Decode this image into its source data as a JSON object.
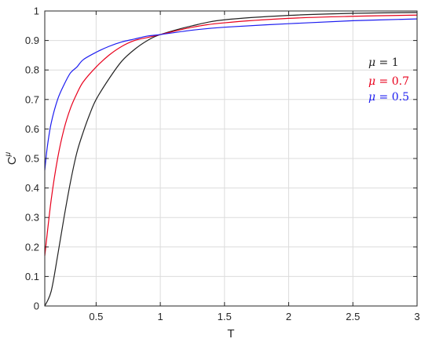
{
  "chart_data": {
    "type": "line",
    "title": "",
    "xlabel": "T",
    "ylabel": "C",
    "ylabel_superscript": "μ",
    "xlim": [
      0.1,
      3
    ],
    "ylim": [
      0,
      1
    ],
    "grid": true,
    "legend_placement": "right",
    "xticks": [
      0.5,
      1,
      1.5,
      2,
      2.5,
      3
    ],
    "xtick_labels": [
      "0.5",
      "1",
      "1.5",
      "2",
      "2.5",
      "3"
    ],
    "yticks": [
      0,
      0.1,
      0.2,
      0.3,
      0.4,
      0.5,
      0.6,
      0.7,
      0.8,
      0.9,
      1
    ],
    "ytick_labels": [
      "0",
      "0.1",
      "0.2",
      "0.3",
      "0.4",
      "0.5",
      "0.6",
      "0.7",
      "0.8",
      "0.9",
      "1"
    ],
    "series": [
      {
        "name": "μ = 1",
        "color": "#222222",
        "x": [
          0.1,
          0.15,
          0.2,
          0.25,
          0.3,
          0.35,
          0.4,
          0.45,
          0.5,
          0.6,
          0.7,
          0.8,
          0.9,
          1.0,
          1.25,
          1.5,
          2.0,
          2.5,
          3.0
        ],
        "y": [
          0.0,
          0.05,
          0.17,
          0.3,
          0.42,
          0.52,
          0.59,
          0.65,
          0.7,
          0.77,
          0.83,
          0.87,
          0.9,
          0.92,
          0.95,
          0.97,
          0.985,
          0.992,
          0.995
        ]
      },
      {
        "name": "μ = 0.7",
        "color": "#e8001c",
        "x": [
          0.1,
          0.15,
          0.2,
          0.25,
          0.3,
          0.35,
          0.4,
          0.5,
          0.6,
          0.7,
          0.8,
          0.9,
          1.0,
          1.25,
          1.5,
          2.0,
          2.5,
          3.0
        ],
        "y": [
          0.17,
          0.36,
          0.5,
          0.6,
          0.67,
          0.72,
          0.76,
          0.81,
          0.85,
          0.88,
          0.9,
          0.91,
          0.92,
          0.945,
          0.96,
          0.975,
          0.982,
          0.986
        ]
      },
      {
        "name": "μ = 0.5",
        "color": "#1d1df0",
        "x": [
          0.1,
          0.12,
          0.15,
          0.2,
          0.25,
          0.3,
          0.35,
          0.4,
          0.5,
          0.6,
          0.7,
          0.8,
          0.9,
          1.0,
          1.25,
          1.5,
          2.0,
          2.5,
          3.0
        ],
        "y": [
          0.46,
          0.54,
          0.62,
          0.7,
          0.75,
          0.79,
          0.81,
          0.835,
          0.86,
          0.88,
          0.895,
          0.905,
          0.915,
          0.92,
          0.935,
          0.945,
          0.957,
          0.967,
          0.973
        ]
      }
    ],
    "legend": [
      {
        "symbol": "μ",
        "eq": " = 1",
        "color": "#222222"
      },
      {
        "symbol": "μ",
        "eq": " = 0.7",
        "color": "#e8001c"
      },
      {
        "symbol": "μ",
        "eq": " = 0.5",
        "color": "#1d1df0"
      }
    ]
  }
}
